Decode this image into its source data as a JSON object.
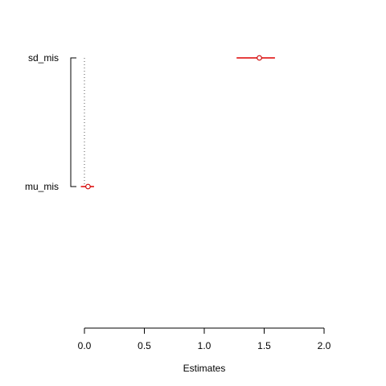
{
  "chart_data": {
    "type": "scatter",
    "title": "",
    "xlabel": "Estimates",
    "ylabel": "",
    "xlim": [
      0,
      2
    ],
    "x_ticks": [
      "0.0",
      "0.5",
      "1.0",
      "1.5",
      "2.0"
    ],
    "x_tick_values": [
      0,
      0.5,
      1.0,
      1.5,
      2.0
    ],
    "reference_line_x": 0,
    "grid": false,
    "point_color": "#cc0000",
    "interval_color": "#dd0000",
    "series": [
      {
        "label": "sd_mis",
        "estimate": 1.46,
        "lower": 1.27,
        "upper": 1.59
      },
      {
        "label": "mu_mis",
        "estimate": 0.03,
        "lower": -0.03,
        "upper": 0.08
      }
    ]
  }
}
